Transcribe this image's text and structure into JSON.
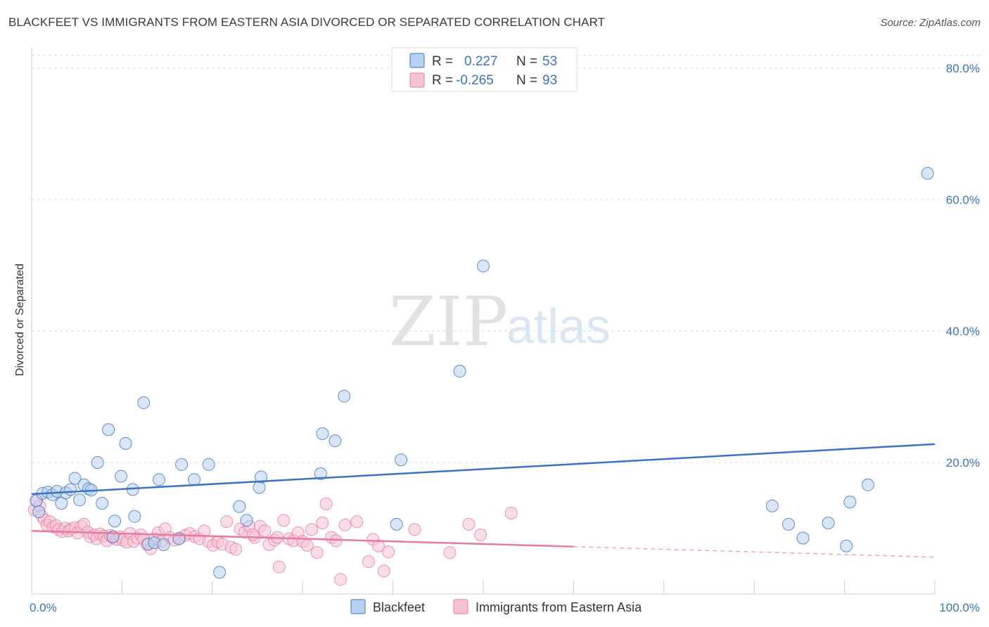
{
  "title": "BLACKFEET VS IMMIGRANTS FROM EASTERN ASIA DIVORCED OR SEPARATED CORRELATION CHART",
  "source": "Source: ZipAtlas.com",
  "watermark": {
    "zip": "ZIP",
    "atlas": "atlas"
  },
  "colors": {
    "blue": "#3b73c4",
    "blue_fill": "#b8d1f0",
    "pink": "#e8799f",
    "pink_fill": "#f6c3d4",
    "grid": "#dddddd",
    "axis": "#cccccc"
  },
  "legend": {
    "rows": [
      {
        "r_label": "R =",
        "r_value": "0.227",
        "n_label": "N =",
        "n_value": "53"
      },
      {
        "r_label": "R =",
        "r_value": "-0.265",
        "n_label": "N =",
        "n_value": "93"
      }
    ]
  },
  "chart_data": {
    "type": "scatter",
    "xlabel": "",
    "ylabel": "Divorced or Separated",
    "xlim": [
      0,
      100
    ],
    "ylim": [
      0,
      80
    ],
    "x_tick_labels": [
      "0.0%",
      "100.0%"
    ],
    "y_ticks": [
      20,
      40,
      60,
      80
    ],
    "y_tick_labels": [
      "20.0%",
      "40.0%",
      "60.0%",
      "80.0%"
    ],
    "grid": "horizontal dashed",
    "legend_position": "bottom",
    "series": [
      {
        "name": "Blackfeet",
        "color": "#3b73c4",
        "trend": {
          "x": [
            0,
            100
          ],
          "y": [
            15.2,
            22.8
          ]
        },
        "points": [
          [
            0.5,
            14.2
          ],
          [
            0.8,
            12.5
          ],
          [
            1.2,
            15.3
          ],
          [
            1.8,
            15.5
          ],
          [
            2.3,
            15.1
          ],
          [
            2.8,
            15.6
          ],
          [
            3.3,
            13.8
          ],
          [
            3.8,
            15.4
          ],
          [
            4.3,
            15.9
          ],
          [
            4.8,
            17.6
          ],
          [
            5.3,
            14.3
          ],
          [
            5.8,
            16.6
          ],
          [
            6.3,
            16.0
          ],
          [
            6.6,
            15.8
          ],
          [
            7.3,
            20.0
          ],
          [
            7.8,
            13.8
          ],
          [
            8.5,
            25.0
          ],
          [
            9.0,
            8.7
          ],
          [
            9.2,
            11.1
          ],
          [
            9.9,
            17.9
          ],
          [
            10.4,
            22.9
          ],
          [
            11.2,
            15.9
          ],
          [
            11.4,
            11.8
          ],
          [
            12.4,
            29.1
          ],
          [
            12.9,
            7.6
          ],
          [
            13.6,
            7.8
          ],
          [
            14.1,
            17.4
          ],
          [
            14.6,
            7.5
          ],
          [
            16.3,
            8.4
          ],
          [
            16.6,
            19.7
          ],
          [
            18.0,
            17.4
          ],
          [
            19.6,
            19.7
          ],
          [
            20.8,
            3.3
          ],
          [
            23.0,
            13.3
          ],
          [
            23.8,
            11.2
          ],
          [
            25.2,
            16.2
          ],
          [
            25.4,
            17.8
          ],
          [
            32.0,
            18.3
          ],
          [
            32.2,
            24.4
          ],
          [
            33.6,
            23.3
          ],
          [
            34.6,
            30.1
          ],
          [
            40.4,
            10.6
          ],
          [
            40.9,
            20.4
          ],
          [
            47.4,
            33.9
          ],
          [
            50.0,
            49.9
          ],
          [
            82.0,
            13.4
          ],
          [
            83.8,
            10.6
          ],
          [
            85.4,
            8.5
          ],
          [
            88.2,
            10.8
          ],
          [
            90.2,
            7.3
          ],
          [
            90.6,
            14.0
          ],
          [
            92.6,
            16.6
          ],
          [
            99.2,
            64.0
          ]
        ]
      },
      {
        "name": "Immigrants from Eastern Asia",
        "color": "#e8799f",
        "trend": {
          "x": [
            0,
            60
          ],
          "y": [
            9.6,
            7.2
          ]
        },
        "trend_dashed": {
          "x": [
            60,
            100
          ],
          "y": [
            7.2,
            5.6
          ]
        },
        "points": [
          [
            0.3,
            12.8
          ],
          [
            0.6,
            14.2
          ],
          [
            0.9,
            13.4
          ],
          [
            1.1,
            11.9
          ],
          [
            1.4,
            11.3
          ],
          [
            1.7,
            10.5
          ],
          [
            2.0,
            11.0
          ],
          [
            2.4,
            10.2
          ],
          [
            2.7,
            10.4
          ],
          [
            3.0,
            9.8
          ],
          [
            3.4,
            9.5
          ],
          [
            3.7,
            10.0
          ],
          [
            4.1,
            9.6
          ],
          [
            4.4,
            9.9
          ],
          [
            4.8,
            10.1
          ],
          [
            5.1,
            9.3
          ],
          [
            5.5,
            10.3
          ],
          [
            5.8,
            10.6
          ],
          [
            6.2,
            9.4
          ],
          [
            6.5,
            8.7
          ],
          [
            6.9,
            9.0
          ],
          [
            7.2,
            8.4
          ],
          [
            7.6,
            9.1
          ],
          [
            8.0,
            8.8
          ],
          [
            8.3,
            8.1
          ],
          [
            8.7,
            8.9
          ],
          [
            9.0,
            8.6
          ],
          [
            9.4,
            8.3
          ],
          [
            9.8,
            8.7
          ],
          [
            10.1,
            8.2
          ],
          [
            10.5,
            7.9
          ],
          [
            10.9,
            9.2
          ],
          [
            11.3,
            8.0
          ],
          [
            11.7,
            8.5
          ],
          [
            12.1,
            9.0
          ],
          [
            12.4,
            8.3
          ],
          [
            12.8,
            7.5
          ],
          [
            13.2,
            6.9
          ],
          [
            13.6,
            8.4
          ],
          [
            14.0,
            9.3
          ],
          [
            14.4,
            8.0
          ],
          [
            14.8,
            9.9
          ],
          [
            15.3,
            8.6
          ],
          [
            15.8,
            8.2
          ],
          [
            16.4,
            8.5
          ],
          [
            17.0,
            8.9
          ],
          [
            17.5,
            9.2
          ],
          [
            18.1,
            8.7
          ],
          [
            18.6,
            8.4
          ],
          [
            19.1,
            9.6
          ],
          [
            19.6,
            8.0
          ],
          [
            20.1,
            7.4
          ],
          [
            20.6,
            7.9
          ],
          [
            21.1,
            7.6
          ],
          [
            21.6,
            11.0
          ],
          [
            22.1,
            7.1
          ],
          [
            22.6,
            6.8
          ],
          [
            23.1,
            9.9
          ],
          [
            23.6,
            9.4
          ],
          [
            24.1,
            10.3
          ],
          [
            24.7,
            8.6
          ],
          [
            25.3,
            10.3
          ],
          [
            25.8,
            9.6
          ],
          [
            26.3,
            7.5
          ],
          [
            26.9,
            8.2
          ],
          [
            27.4,
            4.1
          ],
          [
            27.9,
            11.2
          ],
          [
            28.5,
            8.4
          ],
          [
            29.0,
            8.1
          ],
          [
            29.5,
            9.3
          ],
          [
            30.0,
            8.0
          ],
          [
            30.5,
            7.4
          ],
          [
            31.0,
            9.8
          ],
          [
            31.6,
            6.3
          ],
          [
            32.2,
            10.8
          ],
          [
            32.6,
            13.7
          ],
          [
            33.2,
            8.6
          ],
          [
            33.7,
            8.1
          ],
          [
            34.2,
            2.2
          ],
          [
            34.7,
            10.5
          ],
          [
            36.0,
            11.0
          ],
          [
            37.3,
            4.9
          ],
          [
            37.8,
            8.3
          ],
          [
            38.4,
            7.3
          ],
          [
            39.0,
            3.5
          ],
          [
            39.5,
            6.4
          ],
          [
            42.4,
            9.8
          ],
          [
            46.3,
            6.3
          ],
          [
            48.4,
            10.6
          ],
          [
            49.7,
            9.0
          ],
          [
            53.1,
            12.3
          ],
          [
            27.2,
            8.6
          ],
          [
            24.5,
            9.0
          ]
        ]
      }
    ]
  }
}
